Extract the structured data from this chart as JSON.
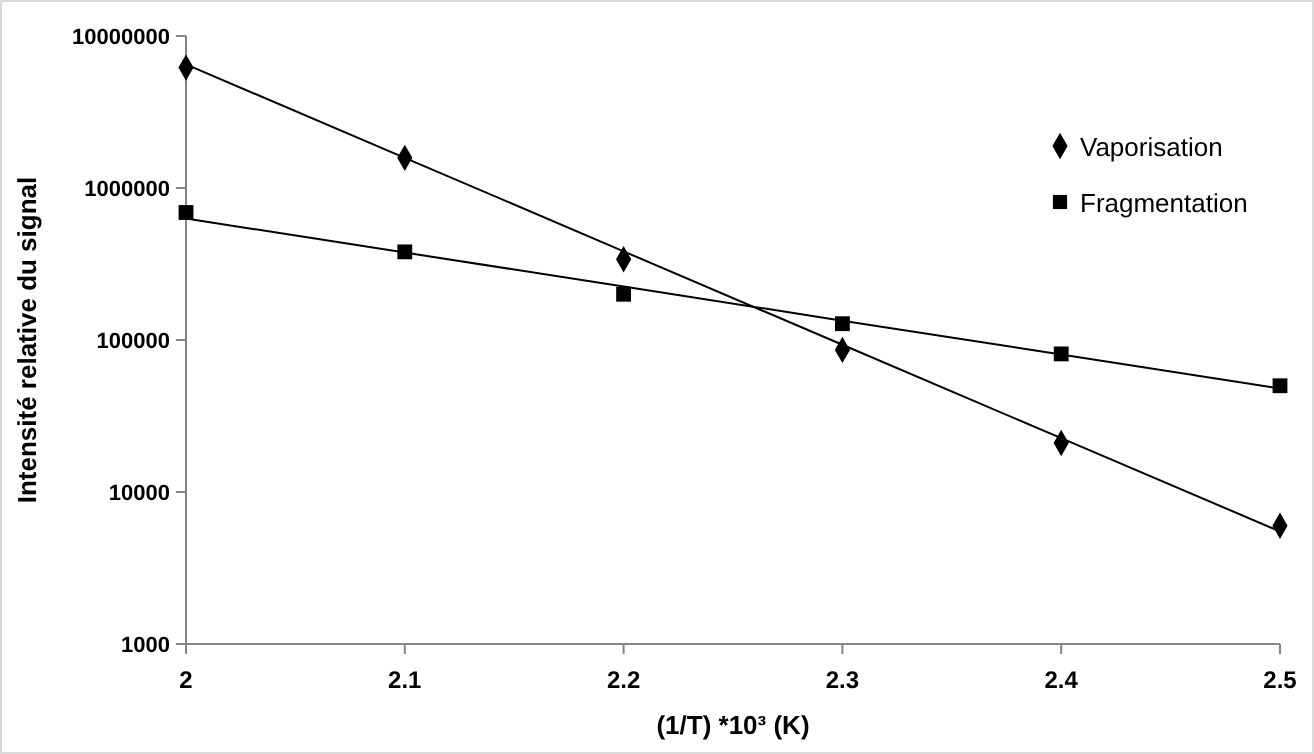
{
  "chart_data": {
    "type": "scatter",
    "xlabel": "(1/T) *10³  (K)",
    "ylabel": "Intensité relative du signal",
    "x": [
      2,
      2.1,
      2.2,
      2.3,
      2.4,
      2.5
    ],
    "series": [
      {
        "name": "Vaporisation",
        "color": "#000000",
        "marker": "diamond",
        "values": [
          6200000,
          1580000,
          340000,
          86000,
          21000,
          6000
        ]
      },
      {
        "name": "Fragmentation",
        "color": "#000000",
        "marker": "square",
        "values": [
          690000,
          380000,
          200000,
          128000,
          81000,
          50000
        ]
      },
      {
        "type": "line",
        "color": "#000000",
        "marker": "none",
        "values": [
          6500000,
          1580000,
          383000,
          93000,
          22600,
          5500
        ]
      },
      {
        "type": "line",
        "color": "#000000",
        "marker": "none",
        "values": [
          630000,
          376000,
          225000,
          134000,
          80300,
          48000
        ]
      }
    ],
    "xlim": [
      2,
      2.5
    ],
    "xticks": [
      2,
      2.1,
      2.2,
      2.3,
      2.4,
      2.5
    ],
    "ylim": [
      1000,
      10000000
    ],
    "yticks": [
      1000,
      10000,
      100000,
      1000000,
      10000000
    ],
    "log": "y",
    "legend": "top right"
  }
}
